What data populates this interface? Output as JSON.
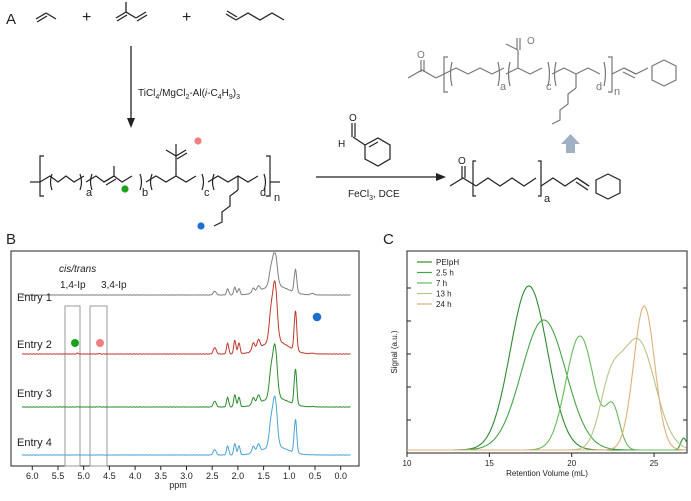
{
  "panel_labels": {
    "a": "A",
    "b": "B",
    "c": "C"
  },
  "scheme": {
    "plus_1": "+",
    "plus_2": "+",
    "catalyst": "TiCl₄/MgCl₂-Al(i-C₄H₉)₃",
    "catalyst_parts": [
      "TiCl",
      "4",
      "/MgCl",
      "2",
      "-Al(",
      "i",
      "-C",
      "4",
      "H",
      "9",
      ")",
      "3"
    ],
    "reagent_conditions": "FeCl₃, DCE",
    "reagent_parts": [
      "FeCl",
      "3",
      ", DCE"
    ],
    "subscripts_polymer": [
      "a",
      "b",
      "c",
      "d",
      "n"
    ],
    "subscripts_product": [
      "a",
      "c",
      "d",
      "n"
    ],
    "subscript_oligomer": "a",
    "arrow_hint": "up-arrow"
  },
  "nmr": {
    "region_labels": [
      "cis/trans",
      "1,4-Ip",
      "3,4-Ip"
    ],
    "entries": [
      "Entry 1",
      "Entry 2",
      "Entry 3",
      "Entry 4"
    ],
    "trace_colors": [
      "#7f7f7f",
      "#c0392b",
      "#2e8b2e",
      "#4aa3d6"
    ],
    "marker_colors": {
      "green": "#1aa31a",
      "pink": "#f08080",
      "blue": "#1f6fd1"
    },
    "x_axis": {
      "label": "ppm",
      "ticks": [
        "6.0",
        "5.5",
        "5.0",
        "4.5",
        "4.0",
        "3.5",
        "3.0",
        "2.5",
        "2.0",
        "1.5",
        "1.0",
        "0.5",
        "0.0"
      ]
    }
  },
  "chart_data": {
    "type": "line",
    "xlabel": "Retention Volume (mL)",
    "ylabel": "Signal (a.u.)",
    "xlim": [
      10,
      27
    ],
    "x_ticks": [
      "10",
      "15",
      "20",
      "25"
    ],
    "legend_placement": "top-left",
    "series": [
      {
        "name": "PEIpH",
        "color": "#2e8b2e",
        "peak_x": 17.4,
        "width": 1.6
      },
      {
        "name": "2.5 h",
        "color": "#47a447",
        "peak_x": 18.3,
        "width": 1.9
      },
      {
        "name": "7 h",
        "color": "#66bb5a",
        "peak_x": 20.5,
        "width": 1.2
      },
      {
        "name": "13 h",
        "color": "#b9c48a",
        "peak_x": 24.0,
        "width": 1.5
      },
      {
        "name": "24 h",
        "color": "#e0b07a",
        "peak_x": 24.4,
        "width": 0.9
      }
    ]
  }
}
